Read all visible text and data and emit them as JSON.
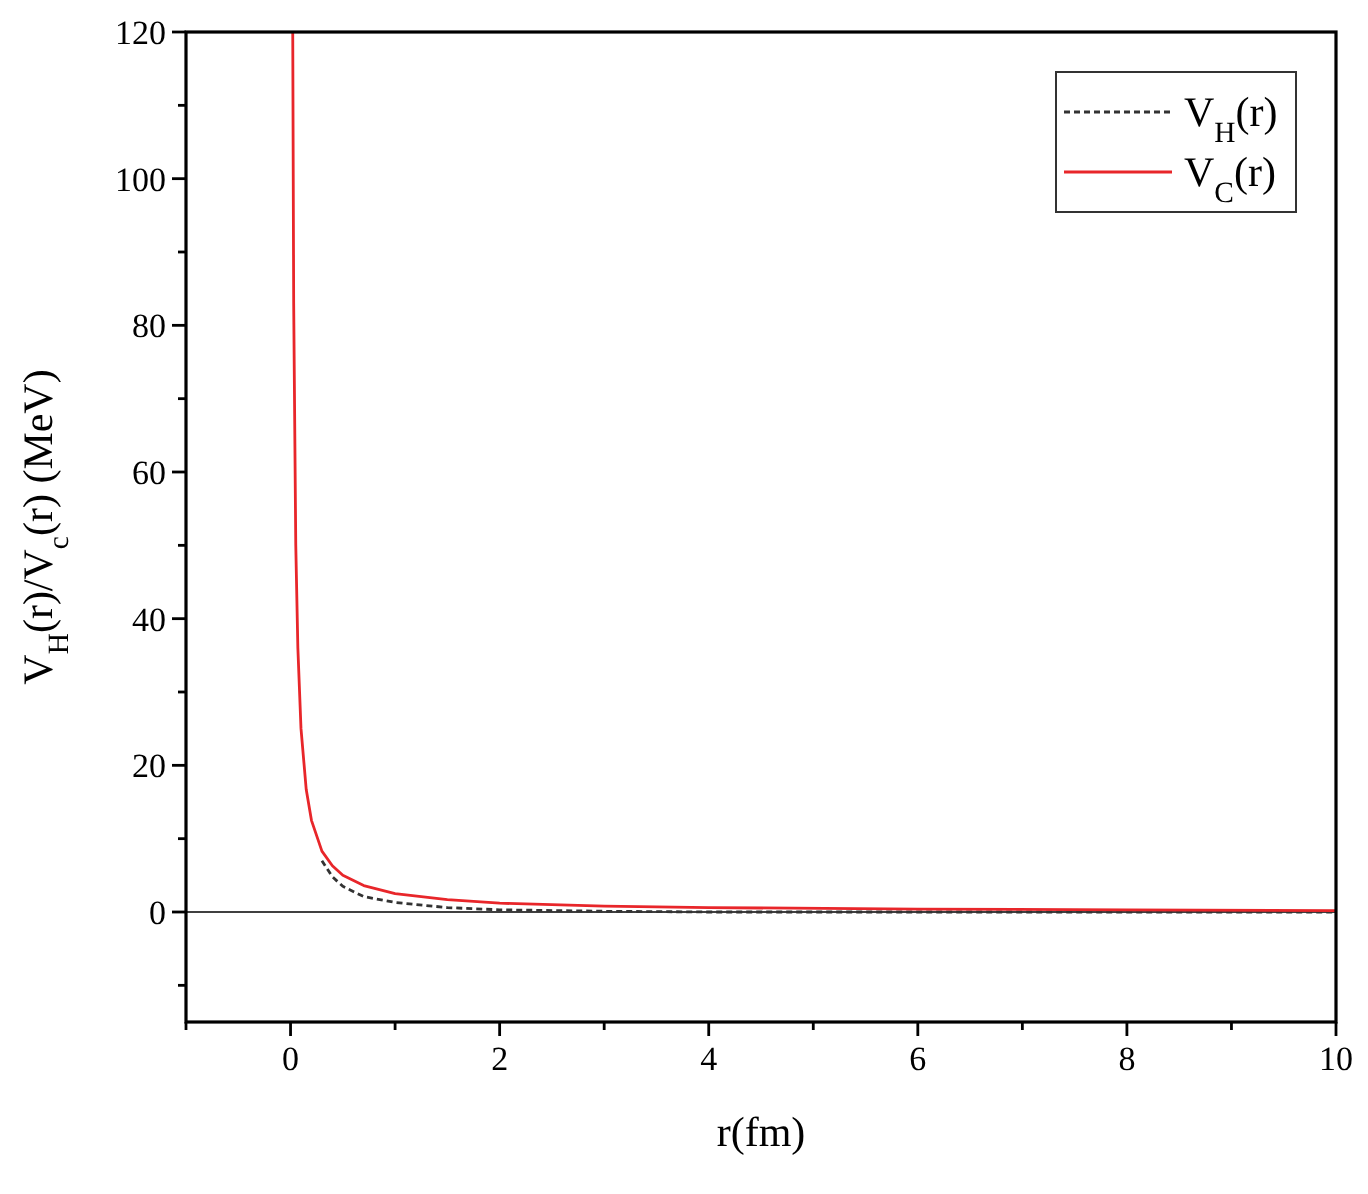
{
  "chart_data": {
    "type": "line",
    "xlabel": "r(fm)",
    "ylabel": "V$_{H}$(r)/V$_{c}$(r) (MeV)",
    "xlim": [
      -1,
      10
    ],
    "ylim": [
      -15,
      120
    ],
    "xticks": [
      {
        "value": -1,
        "label": null
      },
      0,
      {
        "value": 1,
        "label": null
      },
      2,
      {
        "value": 3,
        "label": null
      },
      4,
      {
        "value": 5,
        "label": null
      },
      6,
      {
        "value": 7,
        "label": null
      },
      8,
      {
        "value": 9,
        "label": null
      },
      10
    ],
    "yticks": [
      {
        "value": -10,
        "label": null
      },
      0,
      {
        "value": 10,
        "label": null
      },
      20,
      {
        "value": 30,
        "label": null
      },
      40,
      {
        "value": 50,
        "label": null
      },
      60,
      {
        "value": 70,
        "label": null
      },
      80,
      {
        "value": 90,
        "label": null
      },
      100,
      {
        "value": 110,
        "label": null
      },
      120
    ],
    "legend": "top right",
    "grid": false,
    "ref_lines": [
      {
        "axis": "y",
        "value": 0,
        "color": "#000000"
      }
    ],
    "series": [
      {
        "name": "V$_{H}$(r)",
        "color": "#333333",
        "line_style": "dashed",
        "x": [
          0.3,
          0.4,
          0.5,
          0.7,
          1,
          1.5,
          2,
          3,
          4,
          6,
          8,
          10
        ],
        "values": [
          7,
          4.8,
          3.5,
          2.1,
          1.3,
          0.6,
          0.3,
          0.1,
          0,
          0,
          0,
          0
        ]
      },
      {
        "name": "V$_{C}$(r)",
        "color": "#e8262a",
        "line_style": "solid",
        "x": [
          0.021,
          0.03,
          0.05,
          0.07,
          0.1,
          0.15,
          0.2,
          0.3,
          0.4,
          0.5,
          0.7,
          1,
          1.5,
          2,
          3,
          4,
          6,
          8,
          10
        ],
        "values": [
          120,
          83,
          50,
          36,
          25,
          16.7,
          12.5,
          8.3,
          6.3,
          5,
          3.6,
          2.5,
          1.7,
          1.2,
          0.8,
          0.6,
          0.4,
          0.3,
          0.2
        ]
      }
    ]
  }
}
